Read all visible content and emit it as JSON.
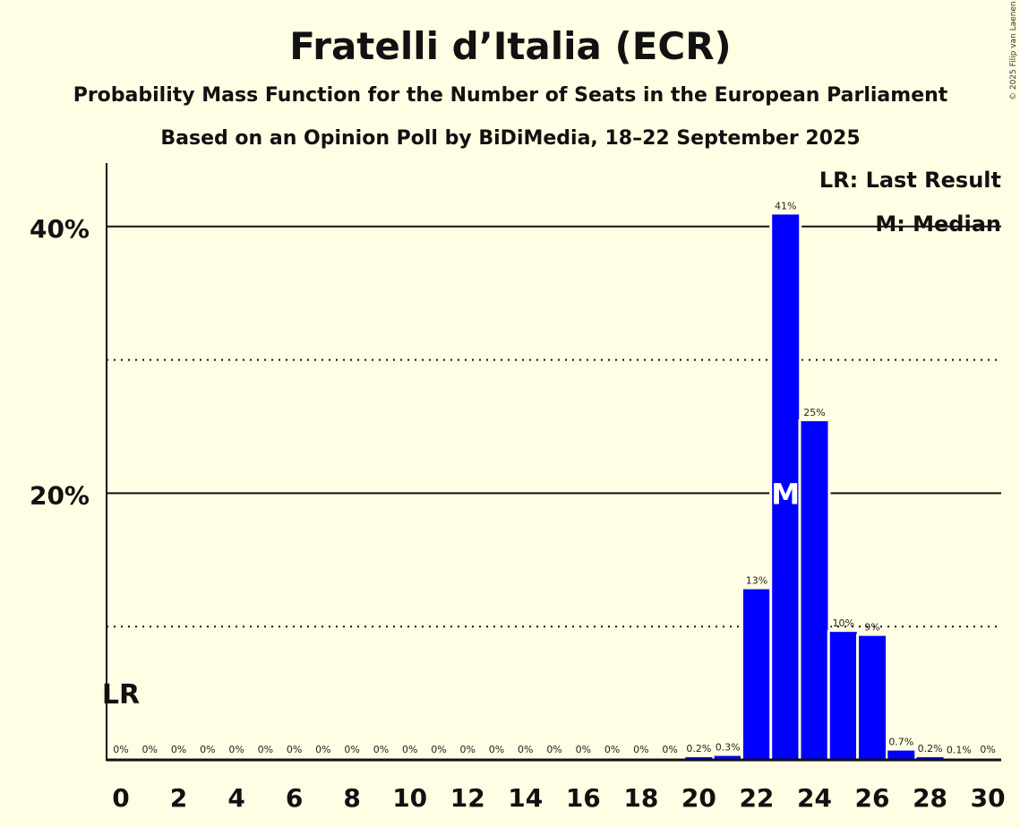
{
  "chart_data": {
    "type": "bar",
    "title": "Fratelli d’Italia (ECR)",
    "subtitle1": "Probability Mass Function for the Number of Seats in the European Parliament",
    "subtitle2": "Based on an Opinion Poll by BiDiMedia, 18–22 September 2025",
    "copyright": "© 2025 Filip van Laenen",
    "x": [
      0,
      1,
      2,
      3,
      4,
      5,
      6,
      7,
      8,
      9,
      10,
      11,
      12,
      13,
      14,
      15,
      16,
      17,
      18,
      19,
      20,
      21,
      22,
      23,
      24,
      25,
      26,
      27,
      28,
      29,
      30
    ],
    "values": [
      0,
      0,
      0,
      0,
      0,
      0,
      0,
      0,
      0,
      0,
      0,
      0,
      0,
      0,
      0,
      0,
      0,
      0,
      0,
      0,
      0.2,
      0.3,
      12.8,
      40.9,
      25.4,
      9.6,
      9.3,
      0.7,
      0.2,
      0.1,
      0
    ],
    "labels": [
      "0%",
      "0%",
      "0%",
      "0%",
      "0%",
      "0%",
      "0%",
      "0%",
      "0%",
      "0%",
      "0%",
      "0%",
      "0%",
      "0%",
      "0%",
      "0%",
      "0%",
      "0%",
      "0%",
      "0%",
      "0.2%",
      "0.3%",
      "13%",
      "41%",
      "25%",
      "10%",
      "9%",
      "0.7%",
      "0.2%",
      "0.1%",
      "0%"
    ],
    "xticks": [
      0,
      2,
      4,
      6,
      8,
      10,
      12,
      14,
      16,
      18,
      20,
      22,
      24,
      26,
      28,
      30
    ],
    "yticks": [
      {
        "value": 20,
        "label": "20%"
      },
      {
        "value": 40,
        "label": "40%"
      }
    ],
    "minor_gridlines": [
      10,
      30
    ],
    "ylim": [
      0,
      45
    ],
    "last_result": {
      "x": 0,
      "label": "LR"
    },
    "median": {
      "x": 23,
      "label": "M"
    },
    "legend": [
      "LR: Last Result",
      "M: Median"
    ],
    "legend_position": "top-right",
    "bar_color": "#0000FF",
    "background": "#FFFDE3"
  }
}
